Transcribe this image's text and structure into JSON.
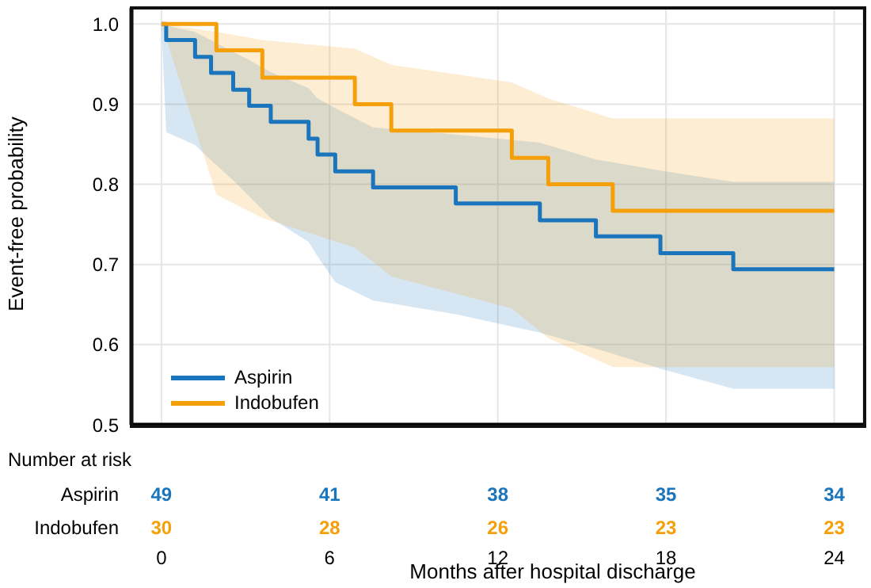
{
  "chart_data": {
    "type": "step",
    "xlabel": "Months after hospital discharge",
    "ylabel": "Event-free probability",
    "xlim": [
      -1.07,
      25.03
    ],
    "xticks": [
      0,
      6,
      12,
      18,
      24
    ],
    "ylim": [
      0.5,
      1.02
    ],
    "yticks": [
      {
        "value": 0.5,
        "label": "0.5"
      },
      0.6,
      0.7,
      0.8,
      0.9,
      {
        "value": 1,
        "label": "1.0"
      }
    ],
    "grid": true,
    "legend": "bottom left",
    "line_style": "solid",
    "marker": "none",
    "series": [
      {
        "name": "Aspirin",
        "color": "#1a75bc",
        "x": [
          0,
          0.17,
          1.2,
          1.77,
          2.56,
          3.13,
          3.9,
          5.25,
          5.57,
          6.2,
          7.55,
          10.5,
          13.5,
          15.5,
          17.8,
          20.4,
          24
        ],
        "values": [
          1,
          0.98,
          0.959,
          0.939,
          0.918,
          0.898,
          0.878,
          0.857,
          0.837,
          0.816,
          0.796,
          0.776,
          0.755,
          0.735,
          0.714,
          0.694,
          0.694
        ],
        "lower": [
          1,
          0.865,
          0.849,
          0.83,
          0.805,
          0.785,
          0.758,
          0.728,
          0.71,
          0.678,
          0.655,
          0.638,
          0.615,
          0.595,
          0.57,
          0.545,
          0.545
        ],
        "upper": [
          1,
          0.998,
          0.99,
          0.98,
          0.965,
          0.955,
          0.94,
          0.92,
          0.907,
          0.895,
          0.871,
          0.862,
          0.852,
          0.831,
          0.817,
          0.803,
          0.803
        ]
      },
      {
        "name": "Indobufen",
        "color": "#f5a00a",
        "x": [
          0,
          1.96,
          3.6,
          6.9,
          8.2,
          12.5,
          13.8,
          16.1,
          24
        ],
        "values": [
          1,
          0.967,
          0.933,
          0.9,
          0.867,
          0.833,
          0.8,
          0.767,
          0.767
        ],
        "lower": [
          1,
          0.787,
          0.758,
          0.721,
          0.685,
          0.645,
          0.608,
          0.572,
          0.572
        ],
        "upper": [
          1,
          0.99,
          0.98,
          0.969,
          0.949,
          0.927,
          0.907,
          0.882,
          0.882
        ]
      }
    ],
    "annotations": [
      "Number at risk",
      "49",
      "41",
      "38",
      "35",
      "34",
      "30",
      "28",
      "26",
      "23",
      "23"
    ]
  }
}
